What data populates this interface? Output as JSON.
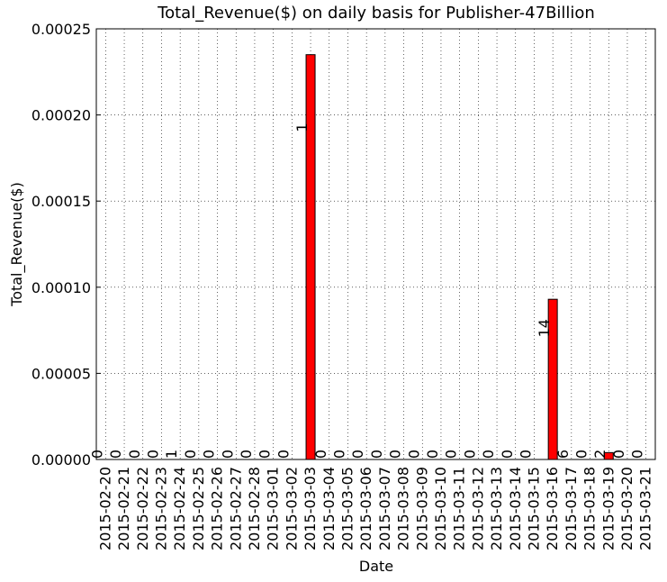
{
  "chart_data": {
    "type": "bar",
    "title": "Total_Revenue($) on daily basis for Publisher-47Billion",
    "x_label": "Date",
    "y_label": "Total_Revenue($)",
    "categories": [
      "2015-02-20",
      "2015-02-21",
      "2015-02-22",
      "2015-02-23",
      "2015-02-24",
      "2015-02-25",
      "2015-02-26",
      "2015-02-27",
      "2015-02-28",
      "2015-03-01",
      "2015-03-02",
      "2015-03-03",
      "2015-03-04",
      "2015-03-05",
      "2015-03-06",
      "2015-03-07",
      "2015-03-08",
      "2015-03-09",
      "2015-03-10",
      "2015-03-11",
      "2015-03-12",
      "2015-03-13",
      "2015-03-14",
      "2015-03-15",
      "2015-03-16",
      "2015-03-17",
      "2015-03-18",
      "2015-03-19",
      "2015-03-20",
      "2015-03-21"
    ],
    "values": [
      0,
      0,
      0,
      0,
      0,
      0,
      0,
      0,
      0,
      0,
      0,
      0.000235,
      0,
      0,
      0,
      0,
      0,
      0,
      0,
      0,
      0,
      0,
      0,
      0,
      9.3e-05,
      0,
      0,
      4e-06,
      0,
      0
    ],
    "annotations": [
      "0",
      "0",
      "0",
      "0",
      "1",
      "0",
      "0",
      "0",
      "0",
      "0",
      "0",
      "1",
      "0",
      "0",
      "0",
      "0",
      "0",
      "0",
      "0",
      "0",
      "0",
      "0",
      "0",
      "0",
      "14",
      "6",
      "0",
      "2",
      "0",
      "0"
    ],
    "color": "#ff0000",
    "ylim": [
      0,
      0.00025
    ],
    "yticks": [
      {
        "value": 0,
        "label": "0.00000"
      },
      {
        "value": 5e-05,
        "label": "0.00005"
      },
      {
        "value": 0.0001,
        "label": "0.00010"
      },
      {
        "value": 0.00015,
        "label": "0.00015"
      },
      {
        "value": 0.0002,
        "label": "0.00020"
      },
      {
        "value": 0.00025,
        "label": "0.00025"
      }
    ],
    "grid": true
  }
}
